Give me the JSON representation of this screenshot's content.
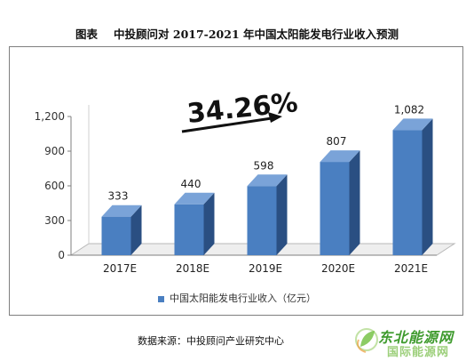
{
  "title": {
    "label": "图表",
    "text": "中投顾问对 2017-2021 年中国太阳能发电行业收入预测"
  },
  "growth_annotation": "34.26%",
  "legend_label": "中国太阳能发电行业收入（亿元）",
  "source": "数据来源：中投顾问产业研究中心",
  "watermark": {
    "name": "东北能源网",
    "sub": "国际能源网"
  },
  "colors": {
    "bar_front": "#4a7fc1",
    "bar_side": "#2a4f82",
    "bar_top": "#7aa3d8"
  },
  "chart_data": {
    "type": "bar",
    "categories": [
      "2017E",
      "2018E",
      "2019E",
      "2020E",
      "2021E"
    ],
    "series": [
      {
        "name": "中国太阳能发电行业收入（亿元）",
        "values": [
          333,
          440,
          598,
          807,
          1082
        ]
      }
    ],
    "data_labels": [
      "333",
      "440",
      "598",
      "807",
      "1,082"
    ],
    "y_ticks": [
      "0",
      "300",
      "600",
      "900",
      "1,200"
    ],
    "ylim": [
      0,
      1200
    ],
    "grid": false,
    "legend": "bottom",
    "annotation": "34.26%"
  }
}
